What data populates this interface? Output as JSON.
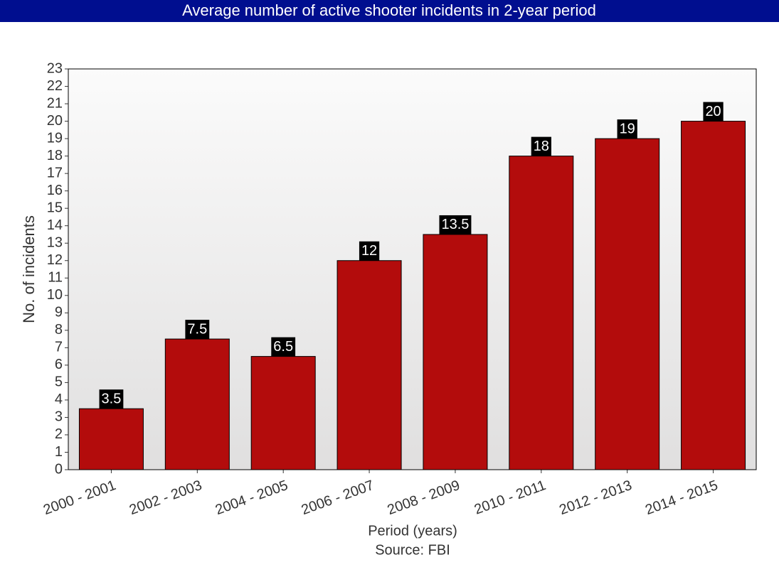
{
  "chart_data": {
    "type": "bar",
    "title": "Average number of active shooter incidents in 2-year period",
    "xlabel": "Period (years)",
    "caption": "Source: FBI",
    "ylabel": "No. of incidents",
    "categories": [
      "2000 - 2001",
      "2002 - 2003",
      "2004 - 2005",
      "2006 - 2007",
      "2008 - 2009",
      "2010 - 2011",
      "2012 - 2013",
      "2014 - 2015"
    ],
    "values": [
      3.5,
      7.5,
      6.5,
      12,
      13.5,
      18,
      19,
      20
    ],
    "color": "#b30c0c",
    "ylim": [
      0,
      23
    ],
    "yticks": [
      0,
      1,
      2,
      3,
      4,
      5,
      6,
      7,
      8,
      9,
      10,
      11,
      12,
      13,
      14,
      15,
      16,
      17,
      18,
      19,
      20,
      21,
      22,
      23
    ],
    "grid": false,
    "data_labels": true
  }
}
